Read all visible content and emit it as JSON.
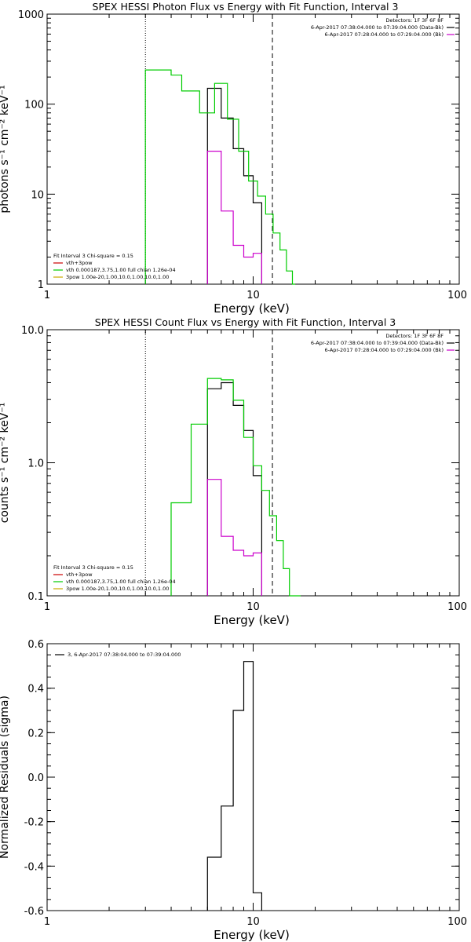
{
  "chart_data": [
    {
      "type": "line",
      "title": "SPEX HESSI Photon Flux vs Energy with Fit Function, Interval 3",
      "xlabel": "Energy (keV)",
      "ylabel": "photons s⁻¹ cm⁻² keV⁻¹",
      "xscale": "log",
      "yscale": "log",
      "xlim": [
        1,
        100
      ],
      "ylim": [
        1,
        1000
      ],
      "xticks": [
        1,
        10,
        100
      ],
      "xtick_labels": [
        "1",
        "10",
        "100"
      ],
      "yticks": [
        1,
        10,
        100,
        1000
      ],
      "ytick_labels": [
        "1",
        "10",
        "100",
        "1000"
      ],
      "vlines": [
        {
          "x": 3.0,
          "style": "dotted"
        },
        {
          "x": 12.4,
          "style": "dashed"
        }
      ],
      "legend_top": [
        {
          "text": "Detectors: 1F 3F 6F 8F",
          "color": ""
        },
        {
          "text": "6-Apr-2017 07:38:04.000 to 07:39:04.000 (Data-Bk)",
          "color": "#000000"
        },
        {
          "text": "6-Apr-2017 07:28:04.000 to 07:29:04.000 (Bk)",
          "color": "#cc00cc"
        }
      ],
      "legend_bottom": [
        {
          "text": "Fit Interval 3   Chi-square = 0.15",
          "color": ""
        },
        {
          "text": "vth+3pow",
          "color": "#cc0000"
        },
        {
          "text": "vth 0.000187,3.75,1.00  full chian 1.26e-04",
          "color": "#00cc00"
        },
        {
          "text": "3pow 1.00e-20,1.00,10.0,1.00,10.0,1.00",
          "color": "#ccaa00"
        }
      ],
      "series": [
        {
          "color": "#000000",
          "edges": [
            6.0,
            6.5,
            7.0,
            7.5,
            8.0,
            8.5,
            9.0,
            9.5,
            10.0,
            10.5,
            11.0
          ],
          "values": [
            150,
            150,
            70,
            70,
            32,
            32,
            16,
            16,
            8,
            8,
            1
          ]
        },
        {
          "color": "#cc00cc",
          "edges": [
            6.0,
            6.5,
            7.0,
            7.5,
            8.0,
            8.5,
            9.0,
            9.5,
            10.0,
            10.5,
            11.0
          ],
          "values": [
            30,
            30,
            6.5,
            6.5,
            2.7,
            2.7,
            2.0,
            2.0,
            2.2,
            2.2,
            1
          ]
        },
        {
          "color": "#00cc00",
          "edges": [
            3.0,
            3.5,
            4.0,
            4.5,
            5.0,
            5.5,
            6.0,
            6.5,
            7.0,
            7.5,
            8.0,
            8.5,
            9.0,
            9.5,
            10.0,
            10.5,
            11.0,
            11.5,
            12.0,
            12.5,
            13.0,
            13.5,
            14.0,
            14.5,
            15.0,
            15.5,
            16.0
          ],
          "values": [
            240,
            240,
            210,
            140,
            140,
            80,
            80,
            170,
            170,
            68,
            68,
            30,
            30,
            14,
            14,
            9.5,
            9.5,
            6,
            6,
            3.7,
            3.7,
            2.4,
            2.4,
            1.4,
            1.4,
            1
          ]
        }
      ]
    },
    {
      "type": "line",
      "title": "SPEX HESSI Count Flux vs Energy with Fit Function, Interval 3",
      "xlabel": "Energy (keV)",
      "ylabel": "counts s⁻¹ cm⁻² keV⁻¹",
      "xscale": "log",
      "yscale": "log",
      "xlim": [
        1,
        100
      ],
      "ylim": [
        0.1,
        10
      ],
      "xticks": [
        1,
        10,
        100
      ],
      "xtick_labels": [
        "1",
        "10",
        "100"
      ],
      "yticks": [
        0.1,
        1,
        10
      ],
      "ytick_labels": [
        "0.1",
        "1.0",
        "10.0"
      ],
      "vlines": [
        {
          "x": 3.0,
          "style": "dotted"
        },
        {
          "x": 12.4,
          "style": "dashed"
        }
      ],
      "legend_top": [
        {
          "text": "Detectors: 1F 3F 6F 8F",
          "color": ""
        },
        {
          "text": "6-Apr-2017 07:38:04.000 to 07:39:04.000 (Data-Bk)",
          "color": "#000000"
        },
        {
          "text": "6-Apr-2017 07:28:04.000 to 07:29:04.000 (Bk)",
          "color": "#cc00cc"
        }
      ],
      "legend_bottom": [
        {
          "text": "Fit Interval 3   Chi-square = 0.15",
          "color": ""
        },
        {
          "text": "vth+3pow",
          "color": "#cc0000"
        },
        {
          "text": "vth 0.000187,3.75,1.00  full chian 1.26e-04",
          "color": "#00cc00"
        },
        {
          "text": "3pow 1.00e-20,1.00,10.0,1.00,10.0,1.00",
          "color": "#ccaa00"
        }
      ],
      "series": [
        {
          "color": "#000000",
          "edges": [
            6.0,
            6.5,
            7.0,
            7.5,
            8.0,
            8.5,
            9.0,
            9.5,
            10.0,
            10.5,
            11.0
          ],
          "values": [
            3.6,
            3.6,
            4.0,
            4.0,
            2.7,
            2.7,
            1.75,
            1.75,
            0.8,
            0.8,
            0.1
          ]
        },
        {
          "color": "#cc00cc",
          "edges": [
            6.0,
            6.5,
            7.0,
            7.5,
            8.0,
            8.5,
            9.0,
            9.5,
            10.0,
            10.5,
            11.0
          ],
          "values": [
            0.75,
            0.75,
            0.28,
            0.28,
            0.22,
            0.22,
            0.2,
            0.2,
            0.21,
            0.21,
            0.1
          ]
        },
        {
          "color": "#00cc00",
          "edges": [
            4.0,
            4.5,
            5.0,
            5.5,
            6.0,
            6.5,
            7.0,
            7.5,
            8.0,
            8.5,
            9.0,
            9.5,
            10.0,
            10.5,
            11.0,
            11.5,
            12.0,
            12.5,
            13.0,
            13.5,
            14.0,
            14.5,
            15.0,
            15.5,
            16.0,
            16.5,
            17.0
          ],
          "values": [
            0.5,
            0.5,
            1.95,
            1.95,
            4.3,
            4.3,
            4.2,
            4.2,
            2.95,
            2.95,
            1.55,
            1.55,
            0.95,
            0.95,
            0.62,
            0.62,
            0.4,
            0.4,
            0.26,
            0.26,
            0.16,
            0.16,
            0.1,
            0.1,
            0.1,
            0.1,
            0.1
          ]
        }
      ]
    },
    {
      "type": "line",
      "title": "",
      "xlabel": "Energy (keV)",
      "ylabel": "Normalized Residuals (sigma)",
      "xscale": "log",
      "yscale": "linear",
      "xlim": [
        1,
        100
      ],
      "ylim": [
        -0.6,
        0.6
      ],
      "xticks": [
        1,
        10,
        100
      ],
      "xtick_labels": [
        "1",
        "10",
        "100"
      ],
      "yticks": [
        -0.6,
        -0.4,
        -0.2,
        0.0,
        0.2,
        0.4,
        0.6
      ],
      "ytick_labels": [
        "-0.6",
        "-0.4",
        "-0.2",
        "0.0",
        "0.2",
        "0.4",
        "0.6"
      ],
      "vlines": [],
      "legend_top": [],
      "legend_bottom": [],
      "legend_topleft": [
        {
          "text": "3,  6-Apr-2017 07:38:04.000 to 07:39:04.000",
          "color": "#000000"
        }
      ],
      "series": [
        {
          "color": "#000000",
          "edges": [
            6.0,
            6.5,
            7.0,
            7.5,
            8.0,
            8.5,
            9.0,
            9.5,
            10.0,
            10.5,
            11.0
          ],
          "values": [
            -0.36,
            -0.36,
            -0.13,
            -0.13,
            0.3,
            0.3,
            0.52,
            0.52,
            -0.52,
            -0.52,
            -0.6
          ]
        }
      ]
    }
  ]
}
